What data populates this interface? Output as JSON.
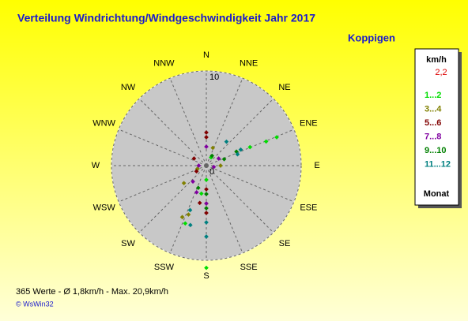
{
  "chart_data": {
    "type": "polar-scatter",
    "title": "Verteilung Windrichtung/Windgeschwindigkeit  Jahr 2017",
    "subtitle": "Koppigen",
    "directions": [
      "N",
      "NNE",
      "NE",
      "ENE",
      "E",
      "ESE",
      "SE",
      "SSE",
      "S",
      "SSW",
      "SW",
      "WSW",
      "W",
      "WNW",
      "NW",
      "NNW"
    ],
    "rlim": [
      0,
      10
    ],
    "rticks": [
      0,
      10
    ],
    "legend_title": "km/h",
    "legend_value": "2,2",
    "legend_footer": "Monat",
    "series": [
      {
        "name": "1...2",
        "color": "#00dd00",
        "direction": [
          68,
          68,
          67,
          200,
          180,
          190,
          250,
          30,
          180
        ],
        "values": [
          8.0,
          6.8,
          5,
          6.5,
          10.8,
          3,
          1,
          1,
          1.5
        ]
      },
      {
        "name": "3...4",
        "color": "#808000",
        "direction": [
          232,
          200,
          205,
          180,
          20,
          250,
          90
        ],
        "values": [
          3,
          5.5,
          6,
          4,
          2,
          1,
          1.5
        ]
      },
      {
        "name": "5...6",
        "color": "#800000",
        "direction": [
          0,
          0,
          180,
          180,
          300,
          240,
          190
        ],
        "values": [
          3.5,
          3,
          2.5,
          5,
          1.5,
          1.2,
          4
        ]
      },
      {
        "name": "7...8",
        "color": "#8000a0",
        "direction": [
          220,
          200,
          0,
          180,
          270,
          60,
          100
        ],
        "values": [
          2.2,
          3,
          2,
          4,
          0.8,
          1.5,
          0.8
        ]
      },
      {
        "name": "9...10",
        "color": "#008000",
        "direction": [
          65,
          180,
          180,
          200,
          70,
          30
        ],
        "values": [
          3.5,
          4.5,
          3,
          2.5,
          2,
          1.2
        ]
      },
      {
        "name": "11...12",
        "color": "#008080",
        "direction": [
          40,
          70,
          65,
          180,
          200,
          180,
          195
        ],
        "values": [
          3.3,
          3.5,
          4,
          6,
          5,
          7.5,
          6.5
        ]
      }
    ],
    "footer": "365 Werte   -   Ø 1,8km/h  -  Max. 20,9km/h",
    "credit": "© WsWin32"
  }
}
